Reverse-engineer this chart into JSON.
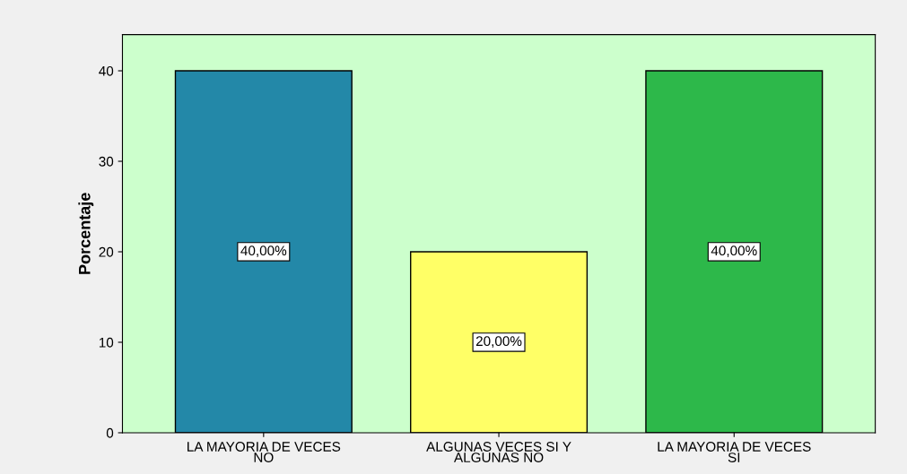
{
  "chart_data": {
    "type": "bar",
    "ylabel": "Porcentaje",
    "categories": [
      "LA MAYORIA DE VECES\nNO",
      "ALGUNAS VECES SI Y\nALGUNAS NO",
      "LA MAYORIA DE VECES\nSI"
    ],
    "values": [
      40,
      20,
      40
    ],
    "colors": [
      "#2388a8",
      "#ffff66",
      "#2db84a"
    ],
    "value_labels": [
      "40,00%",
      "20,00%",
      "40,00%"
    ],
    "ylim": [
      0,
      44
    ],
    "yticks": [
      0,
      10,
      20,
      30,
      40
    ],
    "grid": false
  }
}
